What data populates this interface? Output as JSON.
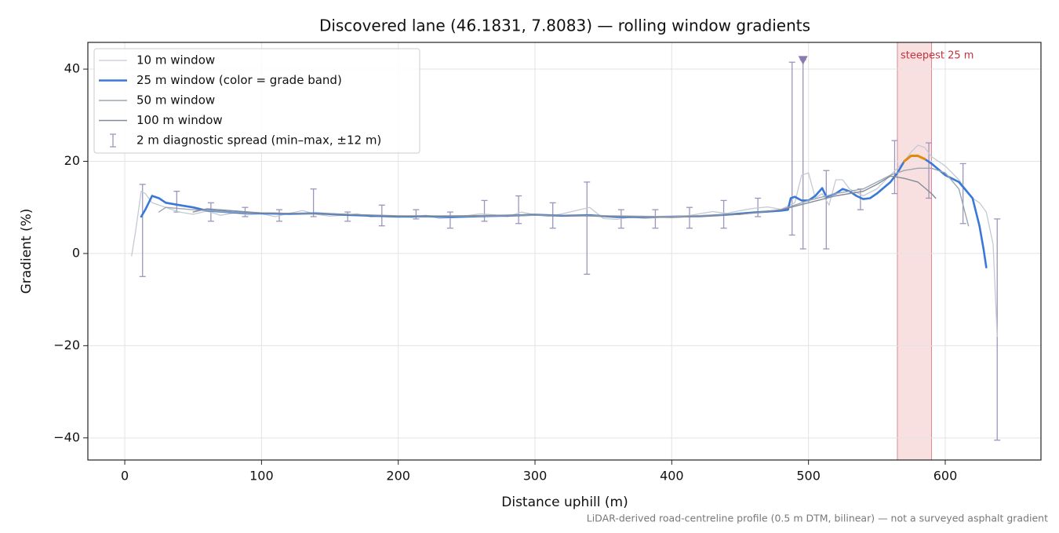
{
  "chart_data": {
    "type": "line",
    "title": "Discovered lane (46.1831, 7.8083) — rolling window gradients",
    "x_label": "Distance uphill (m)",
    "y_label": "Gradient (%)",
    "footnote": "LiDAR-derived road-centreline profile (0.5 m DTM, bilinear) — not a surveyed asphalt gradient",
    "xlim": [
      -27,
      670
    ],
    "ylim": [
      -44.8,
      45.8
    ],
    "xticks": [
      0,
      100,
      200,
      300,
      400,
      500,
      600
    ],
    "yticks": [
      {
        "value": -40,
        "label": "−40"
      },
      {
        "value": -20,
        "label": "−20"
      },
      0,
      20,
      40
    ],
    "grid": true,
    "legend": "upper left",
    "series": [
      {
        "name": "10 m window",
        "color": "#c3cad4",
        "width": 1.3,
        "x": [
          5,
          8,
          12,
          15,
          20,
          30,
          40,
          50,
          60,
          70,
          80,
          90,
          100,
          110,
          120,
          130,
          140,
          150,
          160,
          170,
          180,
          190,
          200,
          210,
          220,
          230,
          240,
          250,
          260,
          270,
          280,
          290,
          300,
          310,
          320,
          330,
          340,
          350,
          360,
          370,
          380,
          390,
          400,
          410,
          420,
          430,
          440,
          450,
          460,
          470,
          480,
          490,
          495,
          500,
          505,
          510,
          515,
          520,
          525,
          530,
          540,
          550,
          560,
          570,
          575,
          580,
          585,
          590,
          600,
          610,
          620,
          625,
          630,
          635,
          638
        ],
        "values": [
          -0.5,
          5,
          13.5,
          13,
          11,
          10,
          9,
          8.5,
          9.2,
          8.3,
          8.8,
          8.4,
          8.6,
          8,
          8.7,
          9.3,
          8.5,
          8.1,
          8.3,
          8.6,
          7.9,
          8.2,
          8,
          7.8,
          8.3,
          7.6,
          7.8,
          8.2,
          8.6,
          8.4,
          8,
          9,
          8.4,
          8.1,
          8.6,
          9.3,
          10,
          7.6,
          7.4,
          7.9,
          7.6,
          7.8,
          7.9,
          8.1,
          8.6,
          9.1,
          8.7,
          9.3,
          9.8,
          10.1,
          9.6,
          11,
          17,
          17.5,
          12,
          13,
          10.5,
          16,
          16,
          14,
          12.5,
          14,
          17,
          20,
          22,
          23.5,
          23,
          21,
          19,
          16,
          12,
          11,
          9,
          2,
          -18
        ]
      },
      {
        "name": "25 m window (color = grade band)",
        "color": "#3a78d8",
        "width": 2.6,
        "bands": [
          {
            "from": 20,
            "color": "#e08a0b"
          }
        ],
        "x": [
          12,
          15,
          20,
          25,
          30,
          40,
          50,
          60,
          80,
          100,
          120,
          140,
          160,
          180,
          200,
          220,
          240,
          260,
          280,
          300,
          320,
          340,
          360,
          380,
          400,
          420,
          440,
          460,
          480,
          485,
          487,
          490,
          495,
          500,
          505,
          510,
          513,
          520,
          525,
          530,
          535,
          540,
          545,
          550,
          560,
          565,
          570,
          575,
          580,
          585,
          590,
          600,
          610,
          620,
          625,
          628,
          630
        ],
        "values": [
          8,
          9.5,
          12.5,
          12,
          11,
          10.5,
          10,
          9.3,
          8.9,
          8.7,
          8.6,
          8.7,
          8.4,
          8.2,
          8,
          8.1,
          7.9,
          8.1,
          8.2,
          8.4,
          8.2,
          8.3,
          7.9,
          7.9,
          8,
          8.1,
          8.4,
          8.9,
          9.3,
          9.5,
          12,
          12.3,
          11.5,
          11.5,
          12.5,
          14.2,
          12.3,
          13,
          14,
          13.5,
          12.5,
          11.8,
          12,
          13,
          15.5,
          17.5,
          20,
          21.2,
          21.2,
          20.5,
          19.5,
          17,
          15.5,
          12,
          6,
          1,
          -3
        ]
      },
      {
        "name": "50 m window",
        "color": "#9ba6b4",
        "width": 1.4,
        "x": [
          25,
          30,
          50,
          75,
          100,
          150,
          200,
          250,
          300,
          350,
          400,
          450,
          480,
          500,
          520,
          540,
          560,
          570,
          580,
          590,
          600,
          610,
          617
        ],
        "values": [
          9,
          10,
          9.5,
          9,
          8.8,
          8.6,
          8.2,
          8.1,
          8.3,
          8.2,
          8,
          8.5,
          9.5,
          11.5,
          13,
          14,
          17,
          18,
          18.5,
          18.5,
          17.5,
          14,
          6
        ]
      },
      {
        "name": "100 m window",
        "color": "#828b97",
        "width": 1.4,
        "x": [
          50,
          60,
          100,
          150,
          200,
          250,
          300,
          350,
          400,
          450,
          480,
          500,
          520,
          540,
          550,
          560,
          570,
          580,
          590,
          593
        ],
        "values": [
          9,
          9.7,
          8.8,
          8.6,
          8.1,
          8.2,
          8.4,
          8.1,
          7.8,
          8.5,
          9.5,
          11,
          12.5,
          13.5,
          15,
          16.8,
          16.3,
          15.5,
          13,
          12
        ]
      }
    ],
    "errorbars": {
      "name": "2 m diagnostic spread (min–max, ±12 m)",
      "color": "#9d95bd",
      "x": [
        13,
        38,
        63,
        88,
        113,
        138,
        163,
        188,
        213,
        238,
        263,
        288,
        313,
        338,
        363,
        388,
        413,
        438,
        463,
        488,
        496,
        513,
        538,
        563,
        588,
        613,
        638
      ],
      "low": [
        -5,
        9,
        7,
        8,
        7,
        8,
        7,
        6,
        7.5,
        5.5,
        7,
        6.5,
        5.5,
        -4.5,
        5.5,
        5.5,
        5.5,
        5.5,
        8,
        4,
        1,
        1,
        9.5,
        13,
        12,
        6.5,
        -40.5
      ],
      "high": [
        15,
        13.5,
        11,
        10,
        9.5,
        14,
        9,
        10.5,
        9.5,
        9,
        11.5,
        12.5,
        11,
        15.5,
        9.5,
        9.5,
        10,
        11.5,
        12,
        41.5,
        42,
        18,
        14,
        24.5,
        24,
        19.5,
        7.5
      ]
    },
    "markers": [
      {
        "x": 496,
        "y": 42,
        "color": "#8a79b0"
      }
    ],
    "highlight_span": {
      "x": [
        565,
        590
      ],
      "label": "steepest 25 m",
      "color": "#f3c6c9",
      "label_color": "#c8303c"
    }
  }
}
